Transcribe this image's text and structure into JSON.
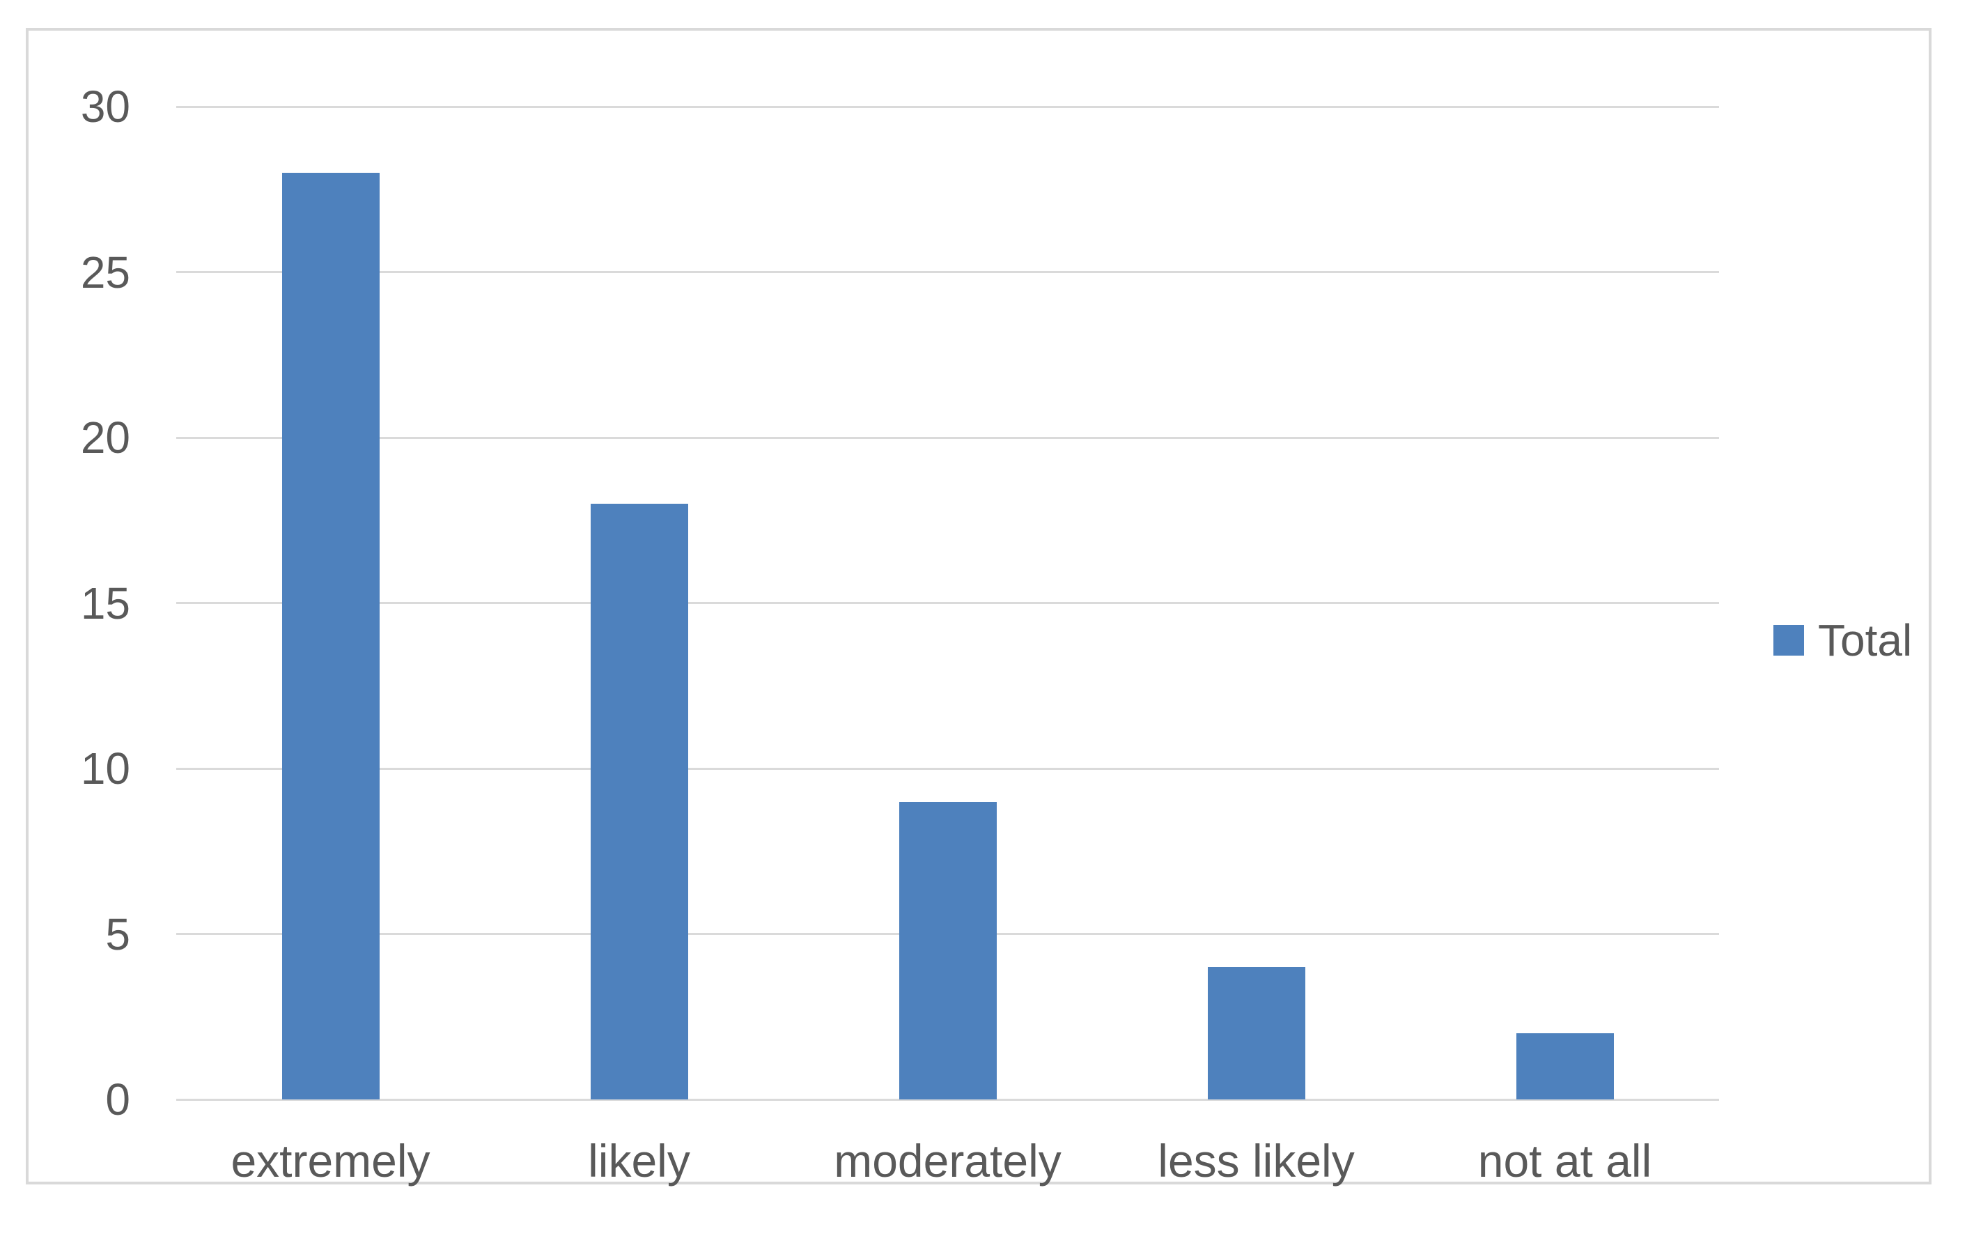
{
  "chart_data": {
    "type": "bar",
    "categories": [
      "extremely",
      "likely",
      "moderately",
      "less likely",
      "not at all"
    ],
    "series": [
      {
        "name": "Total",
        "values": [
          28,
          18,
          9,
          4,
          2
        ]
      }
    ],
    "title": "",
    "xlabel": "",
    "ylabel": "",
    "ylim": [
      0,
      30
    ],
    "yticks": [
      0,
      5,
      10,
      15,
      20,
      25,
      30
    ],
    "grid": true,
    "legend_position": "right",
    "bar_color": "#4e81bd"
  },
  "legend": {
    "label": "Total",
    "swatch_color": "#4e81bd"
  },
  "colors": {
    "bar": "#4e81bd",
    "text": "#595959",
    "gridline": "#dadada",
    "frame_border": "#d9d9d9",
    "background": "#ffffff"
  }
}
